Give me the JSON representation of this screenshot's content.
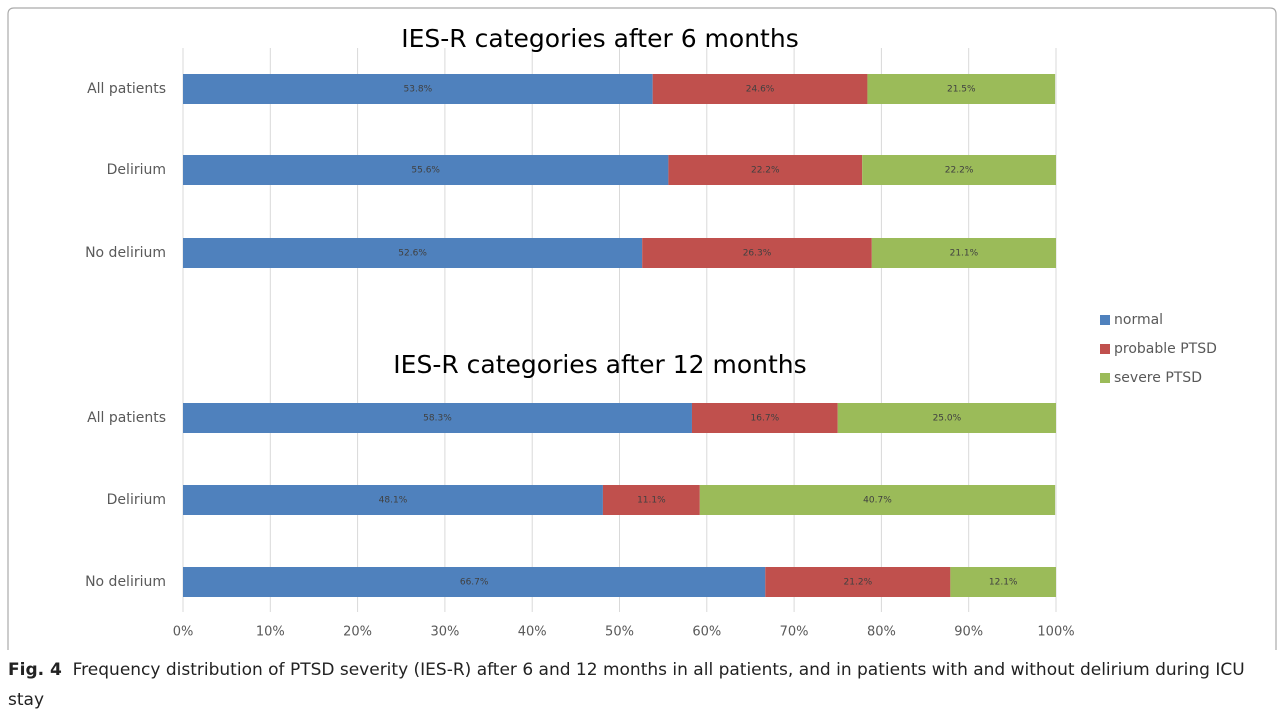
{
  "chart_data": [
    {
      "type": "stacked-bar-horizontal",
      "title": "IES-R categories after 6 months",
      "categories": [
        "All patients",
        "Delirium",
        "No delirium"
      ],
      "xlim": [
        0,
        100
      ],
      "series": [
        {
          "name": "normal",
          "color": "#4f81bd",
          "values": [
            53.8,
            55.6,
            52.6
          ],
          "value_labels": [
            "53.8%",
            "55.6%",
            "52.6%"
          ]
        },
        {
          "name": "probable PTSD",
          "color": "#c0504d",
          "values": [
            24.6,
            22.2,
            26.3
          ],
          "value_labels": [
            "24.6%",
            "22.2%",
            "26.3%"
          ]
        },
        {
          "name": "severe PTSD",
          "color": "#9bbb59",
          "values": [
            21.5,
            22.2,
            21.1
          ],
          "value_labels": [
            "21.5%",
            "22.2%",
            "21.1%"
          ]
        }
      ]
    },
    {
      "type": "stacked-bar-horizontal",
      "title": "IES-R categories after 12 months",
      "categories": [
        "All patients",
        "Delirium",
        "No delirium"
      ],
      "xlim": [
        0,
        100
      ],
      "xticks": [
        {
          "value": 0,
          "label": "0%"
        },
        {
          "value": 10,
          "label": "10%"
        },
        {
          "value": 20,
          "label": "20%"
        },
        {
          "value": 30,
          "label": "30%"
        },
        {
          "value": 40,
          "label": "40%"
        },
        {
          "value": 50,
          "label": "50%"
        },
        {
          "value": 60,
          "label": "60%"
        },
        {
          "value": 70,
          "label": "70%"
        },
        {
          "value": 80,
          "label": "80%"
        },
        {
          "value": 90,
          "label": "90%"
        },
        {
          "value": 100,
          "label": "100%"
        }
      ],
      "grid": true,
      "series": [
        {
          "color": "#4f81bd",
          "values": [
            58.3,
            48.1,
            66.7
          ],
          "value_labels": [
            "58.3%",
            "48.1%",
            "66.7%"
          ]
        },
        {
          "color": "#c0504d",
          "values": [
            16.7,
            11.1,
            21.2
          ],
          "value_labels": [
            "16.7%",
            "11.1%",
            "21.2%"
          ]
        },
        {
          "color": "#9bbb59",
          "values": [
            25.0,
            40.7,
            12.1
          ],
          "value_labels": [
            "25.0%",
            "40.7%",
            "12.1%"
          ]
        }
      ]
    }
  ],
  "caption": {
    "label": "Fig. 4",
    "text": "Frequency distribution of PTSD severity (IES-R) after 6 and 12 months in all patients, and in patients with and without delirium during ICU stay"
  }
}
